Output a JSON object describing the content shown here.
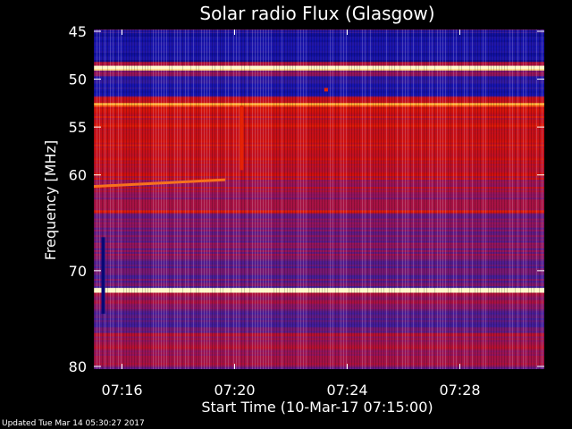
{
  "chart_data": {
    "type": "heatmap",
    "title": "Solar radio Flux (Glasgow)",
    "xlabel": "Start Time (10-Mar-17 07:15:00)",
    "ylabel": "Frequency [MHz]",
    "x_range": [
      "07:15:00",
      "07:31:00"
    ],
    "y_range": [
      45,
      80
    ],
    "y_direction": "top-to-bottom",
    "x_ticks": [
      {
        "time": "07:16",
        "label": "07:16"
      },
      {
        "time": "07:20",
        "label": "07:20"
      },
      {
        "time": "07:24",
        "label": "07:24"
      },
      {
        "time": "07:28",
        "label": "07:28"
      }
    ],
    "y_ticks": [
      {
        "mhz": 45,
        "label": "45"
      },
      {
        "mhz": 50,
        "label": "50"
      },
      {
        "mhz": 55,
        "label": "55"
      },
      {
        "mhz": 60,
        "label": "60"
      },
      {
        "mhz": 70,
        "label": "70"
      },
      {
        "mhz": 80,
        "label": "80"
      }
    ],
    "bands": [
      {
        "from": 44.9,
        "to": 45.2,
        "level": 0.2
      },
      {
        "from": 45.2,
        "to": 48.2,
        "level": 0.15
      },
      {
        "from": 48.2,
        "to": 48.6,
        "level": 0.5
      },
      {
        "from": 48.6,
        "to": 49.1,
        "level": 1.0
      },
      {
        "from": 49.1,
        "to": 49.7,
        "level": 0.4
      },
      {
        "from": 49.7,
        "to": 51.8,
        "level": 0.18
      },
      {
        "from": 51.8,
        "to": 52.5,
        "level": 0.55
      },
      {
        "from": 52.5,
        "to": 52.9,
        "level": 0.85
      },
      {
        "from": 52.9,
        "to": 53.5,
        "level": 0.62
      },
      {
        "from": 53.5,
        "to": 57.0,
        "level": 0.6
      },
      {
        "from": 57.0,
        "to": 60.5,
        "level": 0.56
      },
      {
        "from": 60.5,
        "to": 62.0,
        "level": 0.5
      },
      {
        "from": 62.0,
        "to": 63.7,
        "level": 0.44
      },
      {
        "from": 63.7,
        "to": 64.0,
        "level": 0.7
      },
      {
        "from": 64.0,
        "to": 65.5,
        "level": 0.42
      },
      {
        "from": 65.5,
        "to": 66.5,
        "level": 0.38
      },
      {
        "from": 66.5,
        "to": 69.0,
        "level": 0.4
      },
      {
        "from": 69.0,
        "to": 71.8,
        "level": 0.36
      },
      {
        "from": 71.8,
        "to": 72.3,
        "level": 1.0
      },
      {
        "from": 72.3,
        "to": 74.0,
        "level": 0.45
      },
      {
        "from": 74.0,
        "to": 76.5,
        "level": 0.32
      },
      {
        "from": 76.5,
        "to": 80.0,
        "level": 0.48
      }
    ],
    "features": [
      {
        "kind": "burst-line",
        "time_from": "07:15:00",
        "time_to": "07:19:40",
        "mhz_from": 61.2,
        "mhz_to": 60.5
      },
      {
        "kind": "vertical-streak",
        "time": "07:20:15",
        "mhz_from": 52.8,
        "mhz_to": 59.5
      },
      {
        "kind": "vertical-streak",
        "time": "07:15:20",
        "mhz_from": 66.5,
        "mhz_to": 74.5
      },
      {
        "kind": "spot",
        "time": "07:23:15",
        "mhz": 51.1
      }
    ]
  },
  "footer": "Updated Tue Mar 14 05:30:27 2017",
  "colors": {
    "background": "#000000",
    "text": "#ffffff",
    "low": "#00008b",
    "mid": "#b03060",
    "high": "#ff2000",
    "max": "#fff5c0"
  }
}
